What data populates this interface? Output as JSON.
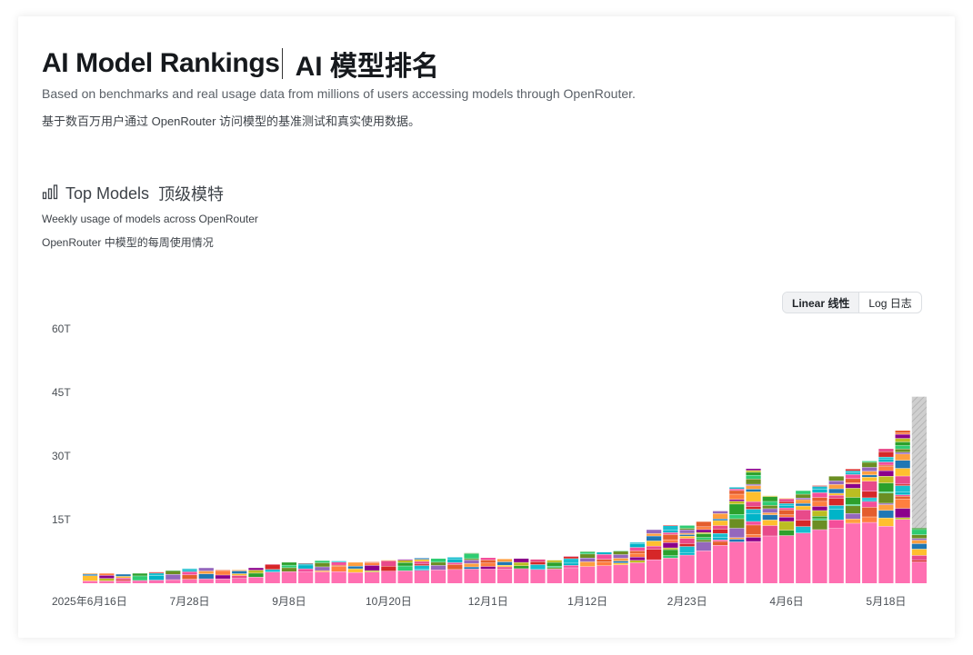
{
  "header": {
    "title_en": "AI Model Rankings",
    "title_zh": "AI 模型排名",
    "subtitle_en": "Based on benchmarks and real usage data from millions of users accessing models through OpenRouter.",
    "subtitle_zh": "基于数百万用户通过 OpenRouter 访问模型的基准测试和真实使用数据。"
  },
  "section": {
    "icon": "bar-chart-icon",
    "title_en": "Top Models",
    "title_zh": "顶级模特",
    "desc_en": "Weekly usage of models across OpenRouter",
    "desc_zh": "OpenRouter 中模型的每周使用情况"
  },
  "scale_toggle": {
    "linear_label": "Linear  线性",
    "log_label": "Log  日志",
    "selected": "linear"
  },
  "chart_data": {
    "type": "bar",
    "stacked": true,
    "y_unit": "tokens",
    "ylim": [
      0,
      60
    ],
    "y_ticks": [
      "60T",
      "45T",
      "30T",
      "15T"
    ],
    "y_tick_values": [
      60,
      45,
      30,
      15
    ],
    "x_tick_labels": [
      "2025年6月16日",
      "7月28日",
      "9月8日",
      "10月20日",
      "12月1日",
      "1月12日",
      "2月23日",
      "4月6日",
      "5月18日"
    ],
    "x_tick_indices": [
      0,
      6,
      12,
      18,
      24,
      30,
      36,
      42,
      48
    ],
    "categories": [
      "2025-06-16",
      "2025-06-23",
      "2025-06-30",
      "2025-07-07",
      "2025-07-14",
      "2025-07-21",
      "2025-07-28",
      "2025-08-04",
      "2025-08-11",
      "2025-08-18",
      "2025-08-25",
      "2025-09-01",
      "2025-09-08",
      "2025-09-15",
      "2025-09-22",
      "2025-09-29",
      "2025-10-06",
      "2025-10-13",
      "2025-10-20",
      "2025-10-27",
      "2025-11-03",
      "2025-11-10",
      "2025-11-17",
      "2025-11-24",
      "2025-12-01",
      "2025-12-08",
      "2025-12-15",
      "2025-12-22",
      "2025-12-29",
      "2026-01-05",
      "2026-01-12",
      "2026-01-19",
      "2026-01-26",
      "2026-02-02",
      "2026-02-09",
      "2026-02-16",
      "2026-02-23",
      "2026-03-02",
      "2026-03-09",
      "2026-03-16",
      "2026-03-23",
      "2026-03-30",
      "2026-04-06",
      "2026-04-13",
      "2026-04-20",
      "2026-04-27",
      "2026-05-04",
      "2026-05-11",
      "2026-05-18",
      "2026-05-25",
      "2026-06-01"
    ],
    "totals": [
      2.3,
      2.3,
      2.1,
      2.3,
      2.6,
      3.0,
      3.4,
      3.6,
      3.1,
      3.1,
      3.6,
      4.5,
      4.9,
      4.7,
      5.3,
      5.2,
      4.9,
      5.0,
      5.4,
      5.6,
      5.9,
      5.8,
      6.1,
      7.1,
      6.0,
      5.7,
      5.8,
      5.6,
      5.4,
      6.3,
      7.5,
      7.3,
      7.6,
      9.6,
      12.6,
      13.7,
      13.6,
      14.5,
      17.0,
      22.6,
      27.0,
      20.6,
      20.0,
      21.8,
      23.0,
      25.2,
      26.9,
      28.8,
      31.7,
      36.0,
      44.0
    ],
    "bottom_segment": {
      "color": "#ff6fb1",
      "values": [
        0.5,
        0.5,
        0.5,
        0.6,
        0.7,
        0.8,
        0.9,
        1.0,
        1.0,
        1.1,
        1.4,
        2.6,
        2.7,
        2.6,
        2.6,
        2.7,
        2.5,
        2.6,
        2.8,
        2.9,
        3.0,
        3.1,
        3.2,
        3.3,
        3.3,
        3.3,
        3.4,
        3.2,
        3.3,
        3.6,
        3.9,
        4.1,
        4.3,
        4.8,
        5.5,
        5.9,
        6.6,
        7.6,
        8.9,
        9.7,
        9.8,
        11.1,
        11.2,
        11.8,
        12.6,
        12.9,
        14.1,
        14.3,
        13.4,
        15.0,
        5.0
      ]
    },
    "partial_last_week": {
      "index": 50,
      "value": 44.0,
      "color": "#c8c8c8"
    },
    "series_colors": [
      "#ff6fb1",
      "#00b4c8",
      "#ff7f3f",
      "#2ca02c",
      "#9467bd",
      "#ffbf2e",
      "#17becf",
      "#e45d2d",
      "#bcbd22",
      "#6b8e23",
      "#1f77b4",
      "#d62728",
      "#f44e9b",
      "#8b008b",
      "#2ecc71",
      "#ff9f40"
    ],
    "grid": false,
    "legend": "none"
  }
}
